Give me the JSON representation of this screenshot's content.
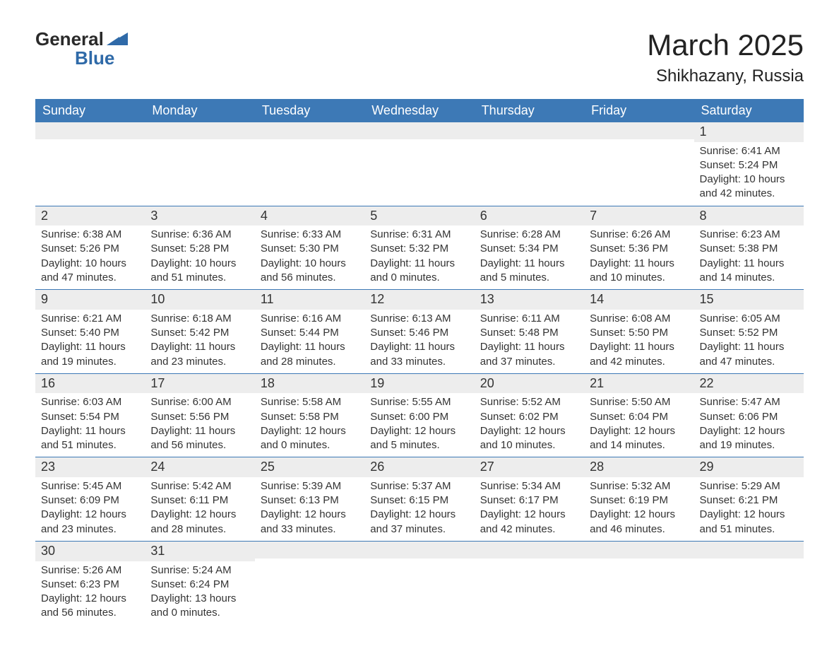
{
  "logo": {
    "text1": "General",
    "text2": "Blue",
    "icon_color": "#2f6aa8",
    "text1_color": "#2a2a2a"
  },
  "title": "March 2025",
  "location": "Shikhazany, Russia",
  "colors": {
    "header_bg": "#3d79b6",
    "header_text": "#ffffff",
    "band_bg": "#ededed",
    "row_border": "#3d79b6",
    "body_text": "#333333",
    "page_bg": "#ffffff"
  },
  "fonts": {
    "title_size": 42,
    "location_size": 24,
    "daynum_size": 18,
    "body_size": 15,
    "family": "Arial"
  },
  "weekdays": [
    "Sunday",
    "Monday",
    "Tuesday",
    "Wednesday",
    "Thursday",
    "Friday",
    "Saturday"
  ],
  "weeks": [
    [
      {
        "blank": true
      },
      {
        "blank": true
      },
      {
        "blank": true
      },
      {
        "blank": true
      },
      {
        "blank": true
      },
      {
        "blank": true
      },
      {
        "day": "1",
        "sunrise": "Sunrise: 6:41 AM",
        "sunset": "Sunset: 5:24 PM",
        "daylight1": "Daylight: 10 hours",
        "daylight2": "and 42 minutes."
      }
    ],
    [
      {
        "day": "2",
        "sunrise": "Sunrise: 6:38 AM",
        "sunset": "Sunset: 5:26 PM",
        "daylight1": "Daylight: 10 hours",
        "daylight2": "and 47 minutes."
      },
      {
        "day": "3",
        "sunrise": "Sunrise: 6:36 AM",
        "sunset": "Sunset: 5:28 PM",
        "daylight1": "Daylight: 10 hours",
        "daylight2": "and 51 minutes."
      },
      {
        "day": "4",
        "sunrise": "Sunrise: 6:33 AM",
        "sunset": "Sunset: 5:30 PM",
        "daylight1": "Daylight: 10 hours",
        "daylight2": "and 56 minutes."
      },
      {
        "day": "5",
        "sunrise": "Sunrise: 6:31 AM",
        "sunset": "Sunset: 5:32 PM",
        "daylight1": "Daylight: 11 hours",
        "daylight2": "and 0 minutes."
      },
      {
        "day": "6",
        "sunrise": "Sunrise: 6:28 AM",
        "sunset": "Sunset: 5:34 PM",
        "daylight1": "Daylight: 11 hours",
        "daylight2": "and 5 minutes."
      },
      {
        "day": "7",
        "sunrise": "Sunrise: 6:26 AM",
        "sunset": "Sunset: 5:36 PM",
        "daylight1": "Daylight: 11 hours",
        "daylight2": "and 10 minutes."
      },
      {
        "day": "8",
        "sunrise": "Sunrise: 6:23 AM",
        "sunset": "Sunset: 5:38 PM",
        "daylight1": "Daylight: 11 hours",
        "daylight2": "and 14 minutes."
      }
    ],
    [
      {
        "day": "9",
        "sunrise": "Sunrise: 6:21 AM",
        "sunset": "Sunset: 5:40 PM",
        "daylight1": "Daylight: 11 hours",
        "daylight2": "and 19 minutes."
      },
      {
        "day": "10",
        "sunrise": "Sunrise: 6:18 AM",
        "sunset": "Sunset: 5:42 PM",
        "daylight1": "Daylight: 11 hours",
        "daylight2": "and 23 minutes."
      },
      {
        "day": "11",
        "sunrise": "Sunrise: 6:16 AM",
        "sunset": "Sunset: 5:44 PM",
        "daylight1": "Daylight: 11 hours",
        "daylight2": "and 28 minutes."
      },
      {
        "day": "12",
        "sunrise": "Sunrise: 6:13 AM",
        "sunset": "Sunset: 5:46 PM",
        "daylight1": "Daylight: 11 hours",
        "daylight2": "and 33 minutes."
      },
      {
        "day": "13",
        "sunrise": "Sunrise: 6:11 AM",
        "sunset": "Sunset: 5:48 PM",
        "daylight1": "Daylight: 11 hours",
        "daylight2": "and 37 minutes."
      },
      {
        "day": "14",
        "sunrise": "Sunrise: 6:08 AM",
        "sunset": "Sunset: 5:50 PM",
        "daylight1": "Daylight: 11 hours",
        "daylight2": "and 42 minutes."
      },
      {
        "day": "15",
        "sunrise": "Sunrise: 6:05 AM",
        "sunset": "Sunset: 5:52 PM",
        "daylight1": "Daylight: 11 hours",
        "daylight2": "and 47 minutes."
      }
    ],
    [
      {
        "day": "16",
        "sunrise": "Sunrise: 6:03 AM",
        "sunset": "Sunset: 5:54 PM",
        "daylight1": "Daylight: 11 hours",
        "daylight2": "and 51 minutes."
      },
      {
        "day": "17",
        "sunrise": "Sunrise: 6:00 AM",
        "sunset": "Sunset: 5:56 PM",
        "daylight1": "Daylight: 11 hours",
        "daylight2": "and 56 minutes."
      },
      {
        "day": "18",
        "sunrise": "Sunrise: 5:58 AM",
        "sunset": "Sunset: 5:58 PM",
        "daylight1": "Daylight: 12 hours",
        "daylight2": "and 0 minutes."
      },
      {
        "day": "19",
        "sunrise": "Sunrise: 5:55 AM",
        "sunset": "Sunset: 6:00 PM",
        "daylight1": "Daylight: 12 hours",
        "daylight2": "and 5 minutes."
      },
      {
        "day": "20",
        "sunrise": "Sunrise: 5:52 AM",
        "sunset": "Sunset: 6:02 PM",
        "daylight1": "Daylight: 12 hours",
        "daylight2": "and 10 minutes."
      },
      {
        "day": "21",
        "sunrise": "Sunrise: 5:50 AM",
        "sunset": "Sunset: 6:04 PM",
        "daylight1": "Daylight: 12 hours",
        "daylight2": "and 14 minutes."
      },
      {
        "day": "22",
        "sunrise": "Sunrise: 5:47 AM",
        "sunset": "Sunset: 6:06 PM",
        "daylight1": "Daylight: 12 hours",
        "daylight2": "and 19 minutes."
      }
    ],
    [
      {
        "day": "23",
        "sunrise": "Sunrise: 5:45 AM",
        "sunset": "Sunset: 6:09 PM",
        "daylight1": "Daylight: 12 hours",
        "daylight2": "and 23 minutes."
      },
      {
        "day": "24",
        "sunrise": "Sunrise: 5:42 AM",
        "sunset": "Sunset: 6:11 PM",
        "daylight1": "Daylight: 12 hours",
        "daylight2": "and 28 minutes."
      },
      {
        "day": "25",
        "sunrise": "Sunrise: 5:39 AM",
        "sunset": "Sunset: 6:13 PM",
        "daylight1": "Daylight: 12 hours",
        "daylight2": "and 33 minutes."
      },
      {
        "day": "26",
        "sunrise": "Sunrise: 5:37 AM",
        "sunset": "Sunset: 6:15 PM",
        "daylight1": "Daylight: 12 hours",
        "daylight2": "and 37 minutes."
      },
      {
        "day": "27",
        "sunrise": "Sunrise: 5:34 AM",
        "sunset": "Sunset: 6:17 PM",
        "daylight1": "Daylight: 12 hours",
        "daylight2": "and 42 minutes."
      },
      {
        "day": "28",
        "sunrise": "Sunrise: 5:32 AM",
        "sunset": "Sunset: 6:19 PM",
        "daylight1": "Daylight: 12 hours",
        "daylight2": "and 46 minutes."
      },
      {
        "day": "29",
        "sunrise": "Sunrise: 5:29 AM",
        "sunset": "Sunset: 6:21 PM",
        "daylight1": "Daylight: 12 hours",
        "daylight2": "and 51 minutes."
      }
    ],
    [
      {
        "day": "30",
        "sunrise": "Sunrise: 5:26 AM",
        "sunset": "Sunset: 6:23 PM",
        "daylight1": "Daylight: 12 hours",
        "daylight2": "and 56 minutes."
      },
      {
        "day": "31",
        "sunrise": "Sunrise: 5:24 AM",
        "sunset": "Sunset: 6:24 PM",
        "daylight1": "Daylight: 13 hours",
        "daylight2": "and 0 minutes."
      },
      {
        "blank": true
      },
      {
        "blank": true
      },
      {
        "blank": true
      },
      {
        "blank": true
      },
      {
        "blank": true
      }
    ]
  ]
}
